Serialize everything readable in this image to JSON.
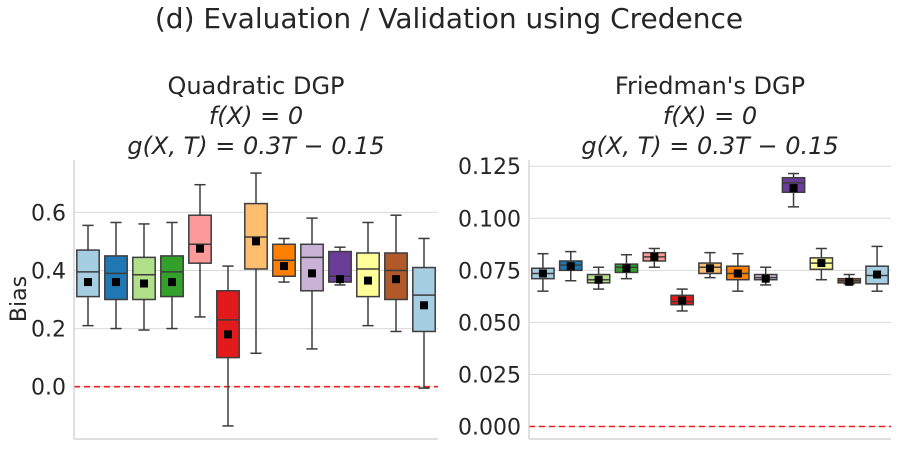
{
  "figure": {
    "suptitle": "(d) Evaluation / Validation using Credence"
  },
  "chart_data": [
    {
      "type": "box",
      "title_lines": [
        "Quadratic DGP",
        "f(X) = 0",
        "g(X, T) = 0.3T − 0.15"
      ],
      "ylabel": "Bias",
      "ylim": [
        -0.18,
        0.78
      ],
      "yticks": [
        0.0,
        0.2,
        0.4,
        0.6
      ],
      "ytick_labels": [
        "0.0",
        "0.2",
        "0.4",
        "0.6"
      ],
      "reference_line": 0.0,
      "grid": true,
      "boxes": [
        {
          "color": "#a6cee3",
          "whislo": 0.21,
          "q1": 0.31,
          "med": 0.395,
          "q3": 0.47,
          "whishi": 0.555,
          "mean": 0.36
        },
        {
          "color": "#1f78b4",
          "whislo": 0.2,
          "q1": 0.3,
          "med": 0.39,
          "q3": 0.45,
          "whishi": 0.565,
          "mean": 0.36
        },
        {
          "color": "#b2df8a",
          "whislo": 0.195,
          "q1": 0.3,
          "med": 0.385,
          "q3": 0.445,
          "whishi": 0.56,
          "mean": 0.355
        },
        {
          "color": "#33a02c",
          "whislo": 0.2,
          "q1": 0.31,
          "med": 0.395,
          "q3": 0.45,
          "whishi": 0.565,
          "mean": 0.36
        },
        {
          "color": "#fb9a99",
          "whislo": 0.24,
          "q1": 0.425,
          "med": 0.49,
          "q3": 0.59,
          "whishi": 0.695,
          "mean": 0.475
        },
        {
          "color": "#e31a1c",
          "whislo": -0.135,
          "q1": 0.1,
          "med": 0.23,
          "q3": 0.33,
          "whishi": 0.415,
          "mean": 0.18
        },
        {
          "color": "#fdbf6f",
          "whislo": 0.115,
          "q1": 0.405,
          "med": 0.515,
          "q3": 0.63,
          "whishi": 0.735,
          "mean": 0.5
        },
        {
          "color": "#ff7f00",
          "whislo": 0.36,
          "q1": 0.38,
          "med": 0.435,
          "q3": 0.49,
          "whishi": 0.51,
          "mean": 0.415
        },
        {
          "color": "#cab2d6",
          "whislo": 0.13,
          "q1": 0.33,
          "med": 0.445,
          "q3": 0.49,
          "whishi": 0.58,
          "mean": 0.39
        },
        {
          "color": "#6a3d9a",
          "whislo": 0.35,
          "q1": 0.36,
          "med": 0.38,
          "q3": 0.465,
          "whishi": 0.48,
          "mean": 0.37
        },
        {
          "color": "#ffff99",
          "whislo": 0.21,
          "q1": 0.31,
          "med": 0.405,
          "q3": 0.46,
          "whishi": 0.565,
          "mean": 0.365
        },
        {
          "color": "#b15928",
          "whislo": 0.19,
          "q1": 0.3,
          "med": 0.4,
          "q3": 0.46,
          "whishi": 0.59,
          "mean": 0.37
        },
        {
          "color": "#a6cee3",
          "whislo": -0.005,
          "q1": 0.19,
          "med": 0.315,
          "q3": 0.41,
          "whishi": 0.51,
          "mean": 0.28
        }
      ]
    },
    {
      "type": "box",
      "title_lines": [
        "Friedman's DGP",
        "f(X) = 0",
        "g(X, T) = 0.3T − 0.15"
      ],
      "ylabel": "",
      "ylim": [
        -0.006,
        0.128
      ],
      "yticks": [
        0.0,
        0.025,
        0.05,
        0.075,
        0.1,
        0.125
      ],
      "ytick_labels": [
        "0.000",
        "0.025",
        "0.050",
        "0.075",
        "0.100",
        "0.125"
      ],
      "reference_line": 0.0,
      "grid": true,
      "boxes": [
        {
          "color": "#a6cee3",
          "whislo": 0.065,
          "q1": 0.071,
          "med": 0.0735,
          "q3": 0.076,
          "whishi": 0.083,
          "mean": 0.0735
        },
        {
          "color": "#1f78b4",
          "whislo": 0.07,
          "q1": 0.075,
          "med": 0.0775,
          "q3": 0.0795,
          "whishi": 0.084,
          "mean": 0.077
        },
        {
          "color": "#b2df8a",
          "whislo": 0.066,
          "q1": 0.069,
          "med": 0.0705,
          "q3": 0.073,
          "whishi": 0.0765,
          "mean": 0.0705
        },
        {
          "color": "#33a02c",
          "whislo": 0.071,
          "q1": 0.074,
          "med": 0.0765,
          "q3": 0.078,
          "whishi": 0.0825,
          "mean": 0.076
        },
        {
          "color": "#fb9a99",
          "whislo": 0.0765,
          "q1": 0.0795,
          "med": 0.0815,
          "q3": 0.0835,
          "whishi": 0.0855,
          "mean": 0.0815
        },
        {
          "color": "#e31a1c",
          "whislo": 0.0555,
          "q1": 0.0585,
          "med": 0.06,
          "q3": 0.063,
          "whishi": 0.066,
          "mean": 0.0605
        },
        {
          "color": "#fdbf6f",
          "whislo": 0.0715,
          "q1": 0.0735,
          "med": 0.0765,
          "q3": 0.0785,
          "whishi": 0.0835,
          "mean": 0.076
        },
        {
          "color": "#ff7f00",
          "whislo": 0.065,
          "q1": 0.0705,
          "med": 0.0735,
          "q3": 0.077,
          "whishi": 0.083,
          "mean": 0.0735
        },
        {
          "color": "#cab2d6",
          "whislo": 0.068,
          "q1": 0.0705,
          "med": 0.0715,
          "q3": 0.073,
          "whishi": 0.0765,
          "mean": 0.071
        },
        {
          "color": "#6a3d9a",
          "whislo": 0.1055,
          "q1": 0.1125,
          "med": 0.117,
          "q3": 0.1195,
          "whishi": 0.1215,
          "mean": 0.1145
        },
        {
          "color": "#ffff99",
          "whislo": 0.0705,
          "q1": 0.0755,
          "med": 0.0785,
          "q3": 0.081,
          "whishi": 0.0855,
          "mean": 0.0785
        },
        {
          "color": "#b15928",
          "whislo": 0.0685,
          "q1": 0.069,
          "med": 0.07,
          "q3": 0.071,
          "whishi": 0.073,
          "mean": 0.0695
        },
        {
          "color": "#a6cee3",
          "whislo": 0.065,
          "q1": 0.0685,
          "med": 0.0725,
          "q3": 0.077,
          "whishi": 0.0865,
          "mean": 0.073
        }
      ]
    }
  ]
}
